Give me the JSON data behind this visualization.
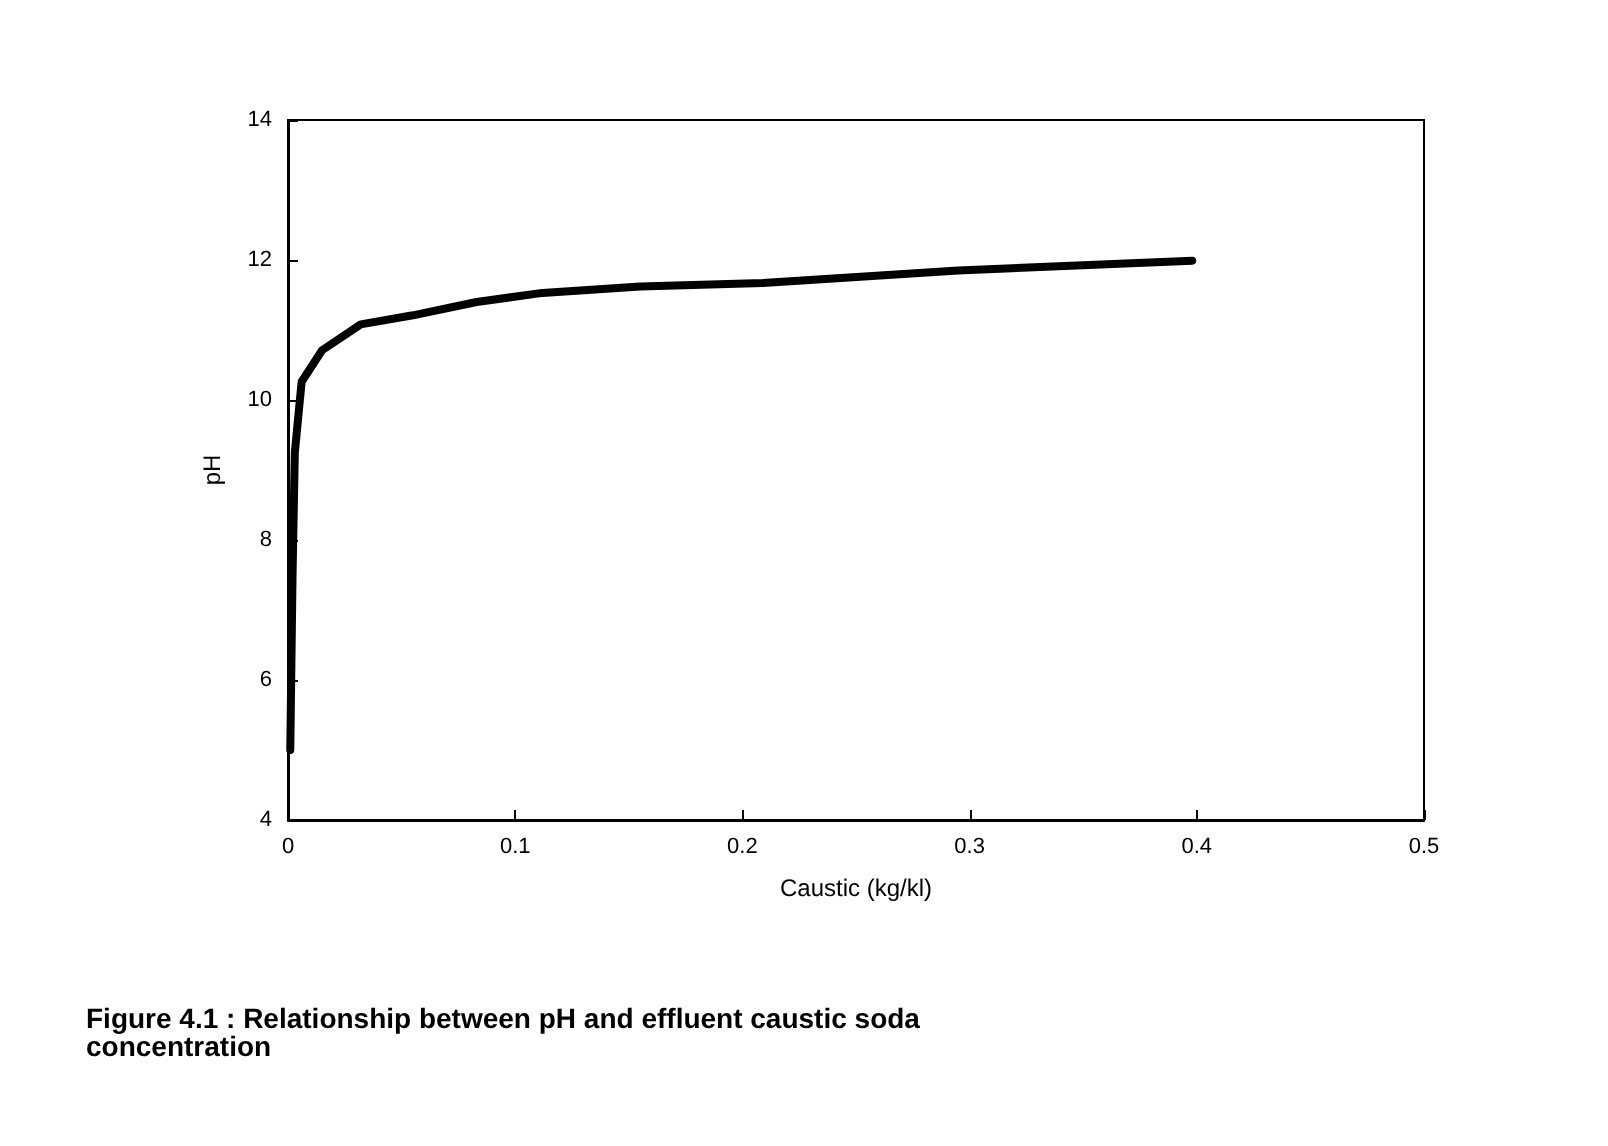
{
  "chart_data": {
    "type": "line",
    "title": "Figure 4.1 : Relationship between pH and effluent caustic soda concentration",
    "xlabel": "Caustic (kg/kl)",
    "ylabel": "pH",
    "x": [
      0.001,
      0.002,
      0.003,
      0.006,
      0.015,
      0.032,
      0.055,
      0.083,
      0.112,
      0.155,
      0.209,
      0.295,
      0.398
    ],
    "series": [
      {
        "color": "#000000",
        "values": [
          5.0,
          7.5,
          9.25,
          10.26,
          10.71,
          11.08,
          11.21,
          11.4,
          11.53,
          11.62,
          11.67,
          11.85,
          11.99
        ]
      }
    ],
    "xlim": [
      0,
      0.5
    ],
    "xticks": [
      0,
      0.1,
      0.2,
      0.3,
      0.4,
      0.5
    ],
    "ylim": [
      4,
      14
    ],
    "yticks": [
      4,
      6,
      8,
      10,
      12,
      14
    ],
    "grid": false,
    "marker": "none",
    "line_style": "solid"
  }
}
